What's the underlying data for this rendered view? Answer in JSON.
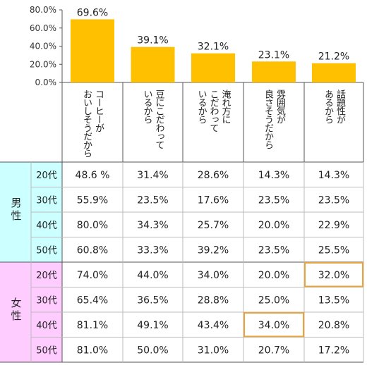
{
  "chart_data": [
    {
      "type": "bar",
      "categories": [
        "コーヒーがおいしそうだから",
        "豆にこだわっているから",
        "淹れ方にこだわっているから",
        "雰囲気が良さそうだから",
        "話題性があるから"
      ],
      "category_lines": [
        [
          "コーヒーが",
          "おいしそうだから"
        ],
        [
          "豆にこだわって",
          "いるから"
        ],
        [
          "淹れ方に",
          "こだわって",
          "いるから"
        ],
        [
          "雰囲気が",
          "良さそうだから"
        ],
        [
          "話題性が",
          "あるから"
        ]
      ],
      "values": [
        69.6,
        39.1,
        32.1,
        23.1,
        21.2
      ],
      "value_labels": [
        "69.6%",
        "39.1%",
        "32.1%",
        "23.1%",
        "21.2%"
      ],
      "ylim": [
        0,
        80
      ],
      "yticks": [
        "0.0%",
        "20.0%",
        "40.0%",
        "60.0%",
        "80.0%"
      ],
      "bar_color": "#ffc000",
      "grid": false
    },
    {
      "type": "table",
      "groups": [
        {
          "label": "男性",
          "color": "#ccffff",
          "rows": [
            {
              "age": "20代",
              "values": [
                "48.6 %",
                "31.4%",
                "28.6%",
                "14.3%",
                "14.3%"
              ]
            },
            {
              "age": "30代",
              "values": [
                "55.9%",
                "23.5%",
                "17.6%",
                "23.5%",
                "23.5%"
              ]
            },
            {
              "age": "40代",
              "values": [
                "80.0%",
                "34.3%",
                "25.7%",
                "20.0%",
                "22.9%"
              ]
            },
            {
              "age": "50代",
              "values": [
                "60.8%",
                "33.3%",
                "39.2%",
                "23.5%",
                "25.5%"
              ]
            }
          ]
        },
        {
          "label": "女性",
          "color": "#ffccff",
          "rows": [
            {
              "age": "20代",
              "values": [
                "74.0%",
                "44.0%",
                "34.0%",
                "20.0%",
                "32.0%"
              ]
            },
            {
              "age": "30代",
              "values": [
                "65.4%",
                "36.5%",
                "28.8%",
                "25.0%",
                "13.5%"
              ]
            },
            {
              "age": "40代",
              "values": [
                "81.1%",
                "49.1%",
                "43.4%",
                "34.0%",
                "20.8%"
              ]
            },
            {
              "age": "50代",
              "values": [
                "81.0%",
                "50.0%",
                "31.0%",
                "20.7%",
                "17.2%"
              ]
            }
          ]
        }
      ],
      "highlights": [
        {
          "group": 1,
          "row": 0,
          "col": 4
        },
        {
          "group": 1,
          "row": 2,
          "col": 3
        }
      ],
      "highlight_color": "#e8a33c"
    }
  ]
}
